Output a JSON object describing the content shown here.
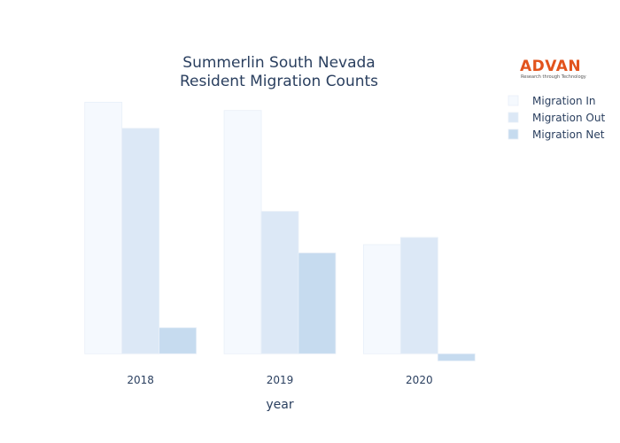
{
  "logo": {
    "name": "ADVAN",
    "tagline": "Research through Technology",
    "color": "#e2531c"
  },
  "chart_data": {
    "type": "bar",
    "title_line1": "Summerlin South Nevada",
    "title_line2": "Resident Migration Counts",
    "xlabel": "year",
    "ylabel": "",
    "categories": [
      "2018",
      "2019",
      "2020"
    ],
    "series": [
      {
        "name": "Migration In",
        "values": [
          1060,
          1025,
          460
        ],
        "color": "#f5f9fe"
      },
      {
        "name": "Migration Out",
        "values": [
          950,
          600,
          490
        ],
        "color": "#dce8f6"
      },
      {
        "name": "Migration Net",
        "values": [
          110,
          425,
          -30
        ],
        "color": "#c6dbef"
      }
    ],
    "ylim": [
      -40,
      1080
    ],
    "grid": false,
    "legend": "top-right"
  }
}
